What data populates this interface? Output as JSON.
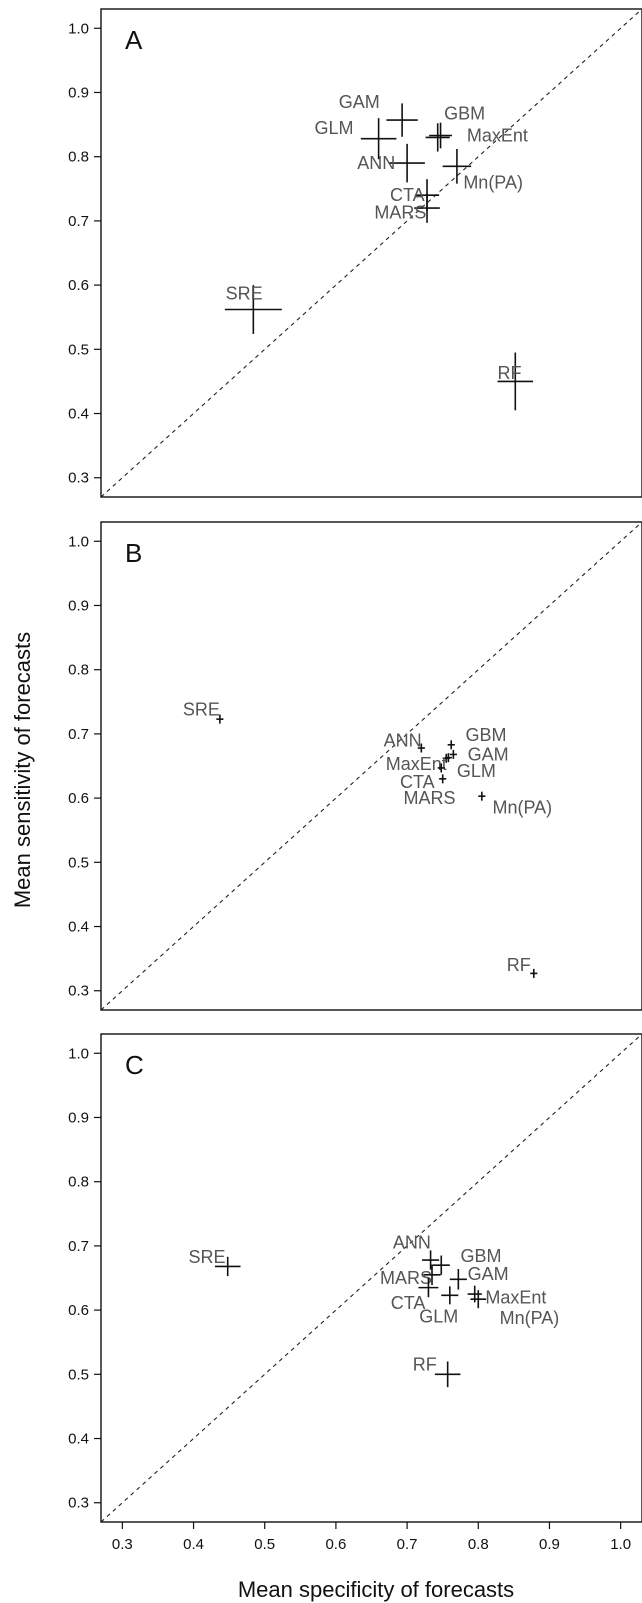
{
  "chart_data": [
    {
      "type": "scatter",
      "panel": "A",
      "xlim": [
        0.27,
        1.03
      ],
      "ylim": [
        0.27,
        1.03
      ],
      "x_ticks": [
        "0.3",
        "0.4",
        "0.5",
        "0.6",
        "0.7",
        "0.8",
        "0.9",
        "1.0"
      ],
      "y_ticks": [
        "0.3",
        "0.4",
        "0.5",
        "0.6",
        "0.7",
        "0.8",
        "0.9",
        "1.0"
      ],
      "show_x_ticks": false,
      "reference_line": "y = x",
      "points": [
        {
          "label": "GAM",
          "x": 0.693,
          "y": 0.857,
          "ex": 0.022,
          "ey": 0.026,
          "lx": 0.604,
          "ly": 0.885
        },
        {
          "label": "GBM",
          "x": 0.743,
          "y": 0.83,
          "ex": 0.017,
          "ey": 0.022,
          "lx": 0.752,
          "ly": 0.867
        },
        {
          "label": "GLM",
          "x": 0.66,
          "y": 0.828,
          "ex": 0.025,
          "ey": 0.032,
          "lx": 0.57,
          "ly": 0.845
        },
        {
          "label": "MaxEnt",
          "x": 0.747,
          "y": 0.833,
          "ex": 0.016,
          "ey": 0.02,
          "lx": 0.784,
          "ly": 0.833
        },
        {
          "label": "ANN",
          "x": 0.7,
          "y": 0.79,
          "ex": 0.025,
          "ey": 0.03,
          "lx": 0.63,
          "ly": 0.79
        },
        {
          "label": "Mn(PA)",
          "x": 0.77,
          "y": 0.785,
          "ex": 0.02,
          "ey": 0.027,
          "lx": 0.779,
          "ly": 0.76
        },
        {
          "label": "CTA",
          "x": 0.728,
          "y": 0.74,
          "ex": 0.017,
          "ey": 0.025,
          "lx": 0.676,
          "ly": 0.74
        },
        {
          "label": "MARS",
          "x": 0.728,
          "y": 0.72,
          "ex": 0.018,
          "ey": 0.023,
          "lx": 0.654,
          "ly": 0.713
        },
        {
          "label": "SRE",
          "x": 0.484,
          "y": 0.562,
          "ex": 0.04,
          "ey": 0.038,
          "lx": 0.445,
          "ly": 0.587
        },
        {
          "label": "RF",
          "x": 0.852,
          "y": 0.45,
          "ex": 0.025,
          "ey": 0.045,
          "lx": 0.827,
          "ly": 0.463
        }
      ]
    },
    {
      "type": "scatter",
      "panel": "B",
      "xlim": [
        0.27,
        1.03
      ],
      "ylim": [
        0.27,
        1.03
      ],
      "x_ticks": [
        "0.3",
        "0.4",
        "0.5",
        "0.6",
        "0.7",
        "0.8",
        "0.9",
        "1.0"
      ],
      "y_ticks": [
        "0.3",
        "0.4",
        "0.5",
        "0.6",
        "0.7",
        "0.8",
        "0.9",
        "1.0"
      ],
      "show_x_ticks": false,
      "reference_line": "y = x",
      "points": [
        {
          "label": "SRE",
          "x": 0.437,
          "y": 0.723,
          "ex": 0.005,
          "ey": 0.007,
          "lx": 0.385,
          "ly": 0.738
        },
        {
          "label": "ANN",
          "x": 0.72,
          "y": 0.678,
          "ex": 0.005,
          "ey": 0.007,
          "lx": 0.667,
          "ly": 0.69
        },
        {
          "label": "GBM",
          "x": 0.762,
          "y": 0.683,
          "ex": 0.005,
          "ey": 0.007,
          "lx": 0.782,
          "ly": 0.698
        },
        {
          "label": "GAM",
          "x": 0.765,
          "y": 0.668,
          "ex": 0.005,
          "ey": 0.007,
          "lx": 0.785,
          "ly": 0.668
        },
        {
          "label": "MaxEnt",
          "x": 0.755,
          "y": 0.662,
          "ex": 0.005,
          "ey": 0.007,
          "lx": 0.67,
          "ly": 0.653
        },
        {
          "label": "GLM",
          "x": 0.758,
          "y": 0.663,
          "ex": 0.005,
          "ey": 0.007,
          "lx": 0.77,
          "ly": 0.642
        },
        {
          "label": "CTA",
          "x": 0.748,
          "y": 0.647,
          "ex": 0.005,
          "ey": 0.007,
          "lx": 0.69,
          "ly": 0.625
        },
        {
          "label": "MARS",
          "x": 0.75,
          "y": 0.63,
          "ex": 0.005,
          "ey": 0.007,
          "lx": 0.695,
          "ly": 0.6
        },
        {
          "label": "Mn(PA)",
          "x": 0.805,
          "y": 0.603,
          "ex": 0.005,
          "ey": 0.007,
          "lx": 0.82,
          "ly": 0.585
        },
        {
          "label": "RF",
          "x": 0.878,
          "y": 0.327,
          "ex": 0.005,
          "ey": 0.007,
          "lx": 0.84,
          "ly": 0.34
        }
      ]
    },
    {
      "type": "scatter",
      "panel": "C",
      "xlim": [
        0.27,
        1.03
      ],
      "ylim": [
        0.27,
        1.03
      ],
      "x_ticks": [
        "0.3",
        "0.4",
        "0.5",
        "0.6",
        "0.7",
        "0.8",
        "0.9",
        "1.0"
      ],
      "y_ticks": [
        "0.3",
        "0.4",
        "0.5",
        "0.6",
        "0.7",
        "0.8",
        "0.9",
        "1.0"
      ],
      "show_x_ticks": true,
      "reference_line": "y = x",
      "points": [
        {
          "label": "SRE",
          "x": 0.448,
          "y": 0.668,
          "ex": 0.018,
          "ey": 0.015,
          "lx": 0.393,
          "ly": 0.683
        },
        {
          "label": "ANN",
          "x": 0.733,
          "y": 0.678,
          "ex": 0.012,
          "ey": 0.015,
          "lx": 0.68,
          "ly": 0.705
        },
        {
          "label": "GBM",
          "x": 0.748,
          "y": 0.67,
          "ex": 0.012,
          "ey": 0.015,
          "lx": 0.775,
          "ly": 0.684
        },
        {
          "label": "GAM",
          "x": 0.772,
          "y": 0.648,
          "ex": 0.012,
          "ey": 0.016,
          "lx": 0.785,
          "ly": 0.656
        },
        {
          "label": "MARS",
          "x": 0.735,
          "y": 0.655,
          "ex": 0.012,
          "ey": 0.016,
          "lx": 0.662,
          "ly": 0.65
        },
        {
          "label": "MaxEnt",
          "x": 0.795,
          "y": 0.625,
          "ex": 0.01,
          "ey": 0.013,
          "lx": 0.81,
          "ly": 0.62
        },
        {
          "label": "CTA",
          "x": 0.73,
          "y": 0.635,
          "ex": 0.014,
          "ey": 0.015,
          "lx": 0.677,
          "ly": 0.611
        },
        {
          "label": "GLM",
          "x": 0.76,
          "y": 0.623,
          "ex": 0.012,
          "ey": 0.014,
          "lx": 0.717,
          "ly": 0.59
        },
        {
          "label": "Mn(PA)",
          "x": 0.8,
          "y": 0.617,
          "ex": 0.011,
          "ey": 0.014,
          "lx": 0.83,
          "ly": 0.588
        },
        {
          "label": "RF",
          "x": 0.757,
          "y": 0.5,
          "ex": 0.018,
          "ey": 0.02,
          "lx": 0.708,
          "ly": 0.515
        }
      ]
    }
  ],
  "axes": {
    "xlabel": "Mean specificity of forecasts",
    "ylabel": "Mean sensitivity of forecasts"
  },
  "colors": {
    "frame": "#111111",
    "label": "#555555",
    "cross": "#111111"
  }
}
